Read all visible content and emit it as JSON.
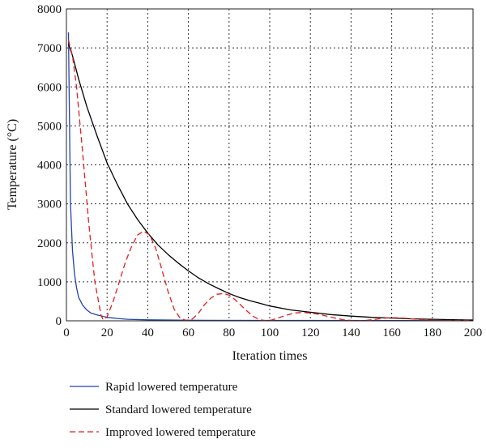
{
  "chart_data": {
    "type": "line",
    "title": "",
    "xlabel": "Iteration times",
    "ylabel": "Temperature (°C)",
    "xlim": [
      0,
      200
    ],
    "ylim": [
      0,
      8000
    ],
    "xticks": [
      0,
      20,
      40,
      60,
      80,
      100,
      120,
      140,
      160,
      180,
      200
    ],
    "yticks": [
      0,
      1000,
      2000,
      3000,
      4000,
      5000,
      6000,
      7000,
      8000
    ],
    "grid": "dotted",
    "legend_position": "bottom",
    "series": [
      {
        "name": "Rapid lowered temperature",
        "color": "#2244aa",
        "dash": "solid",
        "x": [
          1,
          2,
          3,
          4,
          5,
          6,
          8,
          10,
          12,
          15,
          20,
          25,
          30,
          40,
          60,
          100,
          200
        ],
        "y": [
          7400,
          3000,
          1800,
          1200,
          850,
          600,
          400,
          280,
          200,
          150,
          90,
          60,
          40,
          25,
          15,
          10,
          5
        ]
      },
      {
        "name": "Standard lowered temperature",
        "color": "#000000",
        "dash": "solid",
        "x": [
          1,
          3,
          6,
          10,
          15,
          20,
          25,
          30,
          35,
          40,
          45,
          50,
          55,
          60,
          65,
          70,
          75,
          80,
          85,
          90,
          95,
          100,
          110,
          120,
          130,
          140,
          150,
          160,
          170,
          180,
          190,
          200
        ],
        "y": [
          7100,
          6800,
          6200,
          5500,
          4750,
          4050,
          3500,
          3000,
          2600,
          2250,
          1950,
          1700,
          1480,
          1280,
          1100,
          950,
          820,
          700,
          600,
          520,
          450,
          380,
          280,
          220,
          160,
          120,
          90,
          70,
          50,
          40,
          30,
          20
        ]
      },
      {
        "name": "Improved lowered temperature",
        "color": "#e02020",
        "dash": "dashed",
        "x": [
          1,
          3,
          5,
          8,
          11,
          14,
          17,
          18,
          20,
          23,
          26,
          29,
          32,
          35,
          38,
          41,
          44,
          47,
          50,
          53,
          56,
          59,
          62,
          65,
          68,
          71,
          74,
          77,
          80,
          83,
          86,
          89,
          92,
          95,
          98,
          101,
          104,
          108,
          112,
          116,
          120,
          124,
          128,
          132,
          136,
          140,
          144,
          148,
          152,
          156,
          160,
          164,
          168,
          172,
          176,
          180,
          184,
          188,
          192,
          196,
          200
        ],
        "y": [
          7200,
          6800,
          6000,
          4300,
          2500,
          1000,
          150,
          30,
          100,
          500,
          1000,
          1500,
          1900,
          2200,
          2300,
          2200,
          1850,
          1300,
          750,
          300,
          60,
          10,
          50,
          200,
          420,
          580,
          680,
          700,
          660,
          540,
          390,
          240,
          110,
          30,
          5,
          20,
          70,
          140,
          200,
          215,
          200,
          170,
          120,
          70,
          30,
          10,
          5,
          15,
          40,
          65,
          80,
          75,
          60,
          40,
          25,
          15,
          10,
          8,
          10,
          12,
          10
        ]
      }
    ]
  }
}
